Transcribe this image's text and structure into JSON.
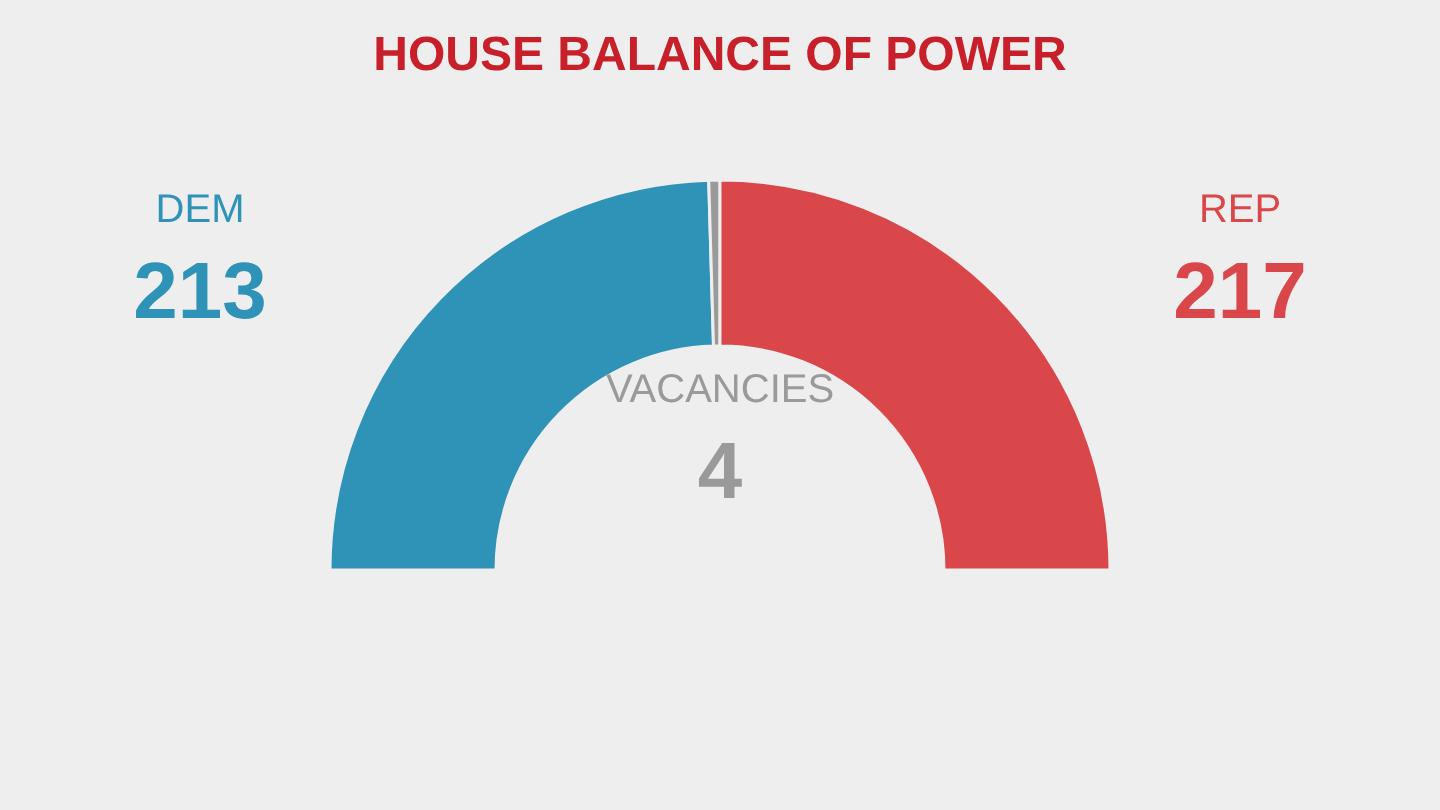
{
  "chart_data": {
    "type": "donut",
    "title": "HOUSE BALANCE OF POWER",
    "categories": [
      "DEM",
      "VACANCIES",
      "REP"
    ],
    "values": [
      213,
      4,
      217
    ],
    "colors": [
      "#2f93b8",
      "#9a9a9a",
      "#d9474a"
    ],
    "data_labels": true
  }
}
